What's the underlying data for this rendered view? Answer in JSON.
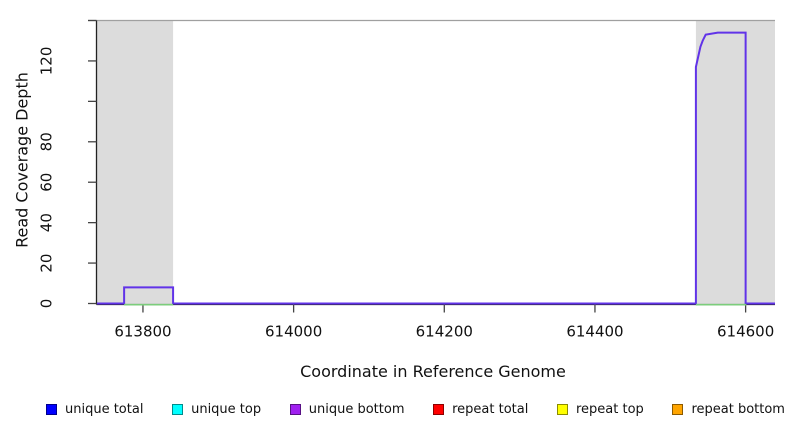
{
  "chart_data": {
    "type": "line",
    "title": "",
    "xlabel": "Coordinate in Reference Genome",
    "ylabel": "Read Coverage Depth",
    "xlim": [
      613739,
      614639
    ],
    "ylim": [
      0,
      140
    ],
    "grid": false,
    "x_ticks": [
      613800,
      614000,
      614200,
      614400,
      614600
    ],
    "x_tick_labels": [
      "613800",
      "614000",
      "614200",
      "614400",
      "614600"
    ],
    "y_ticks": [
      0,
      20,
      40,
      60,
      80,
      100,
      120,
      140
    ],
    "y_tick_labels": [
      "0",
      "20",
      "40",
      "60",
      "80",
      "",
      "120",
      ""
    ],
    "top_reference_line": {
      "y": 140,
      "color": "#a0a0a0"
    },
    "shaded_regions": [
      {
        "name": "masked-region-left",
        "x0": 613739,
        "x1": 613840,
        "color": "#dcdcdc"
      },
      {
        "name": "masked-region-right",
        "x0": 614534,
        "x1": 614639,
        "color": "#dcdcdc"
      }
    ],
    "series": [
      {
        "name": "unique coverage (step line)",
        "color": "#6133e8",
        "type": "step",
        "points": [
          [
            613739,
            0
          ],
          [
            613775,
            0
          ],
          [
            613775,
            8
          ],
          [
            613840,
            8
          ],
          [
            613840,
            0
          ],
          [
            614534,
            0
          ],
          [
            614534,
            117
          ],
          [
            614537,
            122
          ],
          [
            614540,
            127
          ],
          [
            614543,
            130
          ],
          [
            614547,
            133
          ],
          [
            614563,
            134
          ],
          [
            614600,
            134
          ],
          [
            614600,
            0
          ],
          [
            614639,
            0
          ]
        ]
      },
      {
        "name": "baseline coverage (green segments)",
        "color": "#7ccd7c",
        "type": "segments",
        "y": 0,
        "segments": [
          [
            613775,
            613840
          ],
          [
            614534,
            614601
          ]
        ]
      }
    ],
    "legend": [
      {
        "label": "unique total",
        "color": "#0000ff"
      },
      {
        "label": "unique top",
        "color": "#00ffff"
      },
      {
        "label": "unique bottom",
        "color": "#a020f0"
      },
      {
        "label": "repeat total",
        "color": "#ff0000"
      },
      {
        "label": "repeat top",
        "color": "#ffff00"
      },
      {
        "label": "repeat bottom",
        "color": "#ffa500"
      }
    ],
    "legend_position": "bottom",
    "axis_color": "#222222",
    "tick_color": "#444444",
    "label_color": "#111111"
  }
}
